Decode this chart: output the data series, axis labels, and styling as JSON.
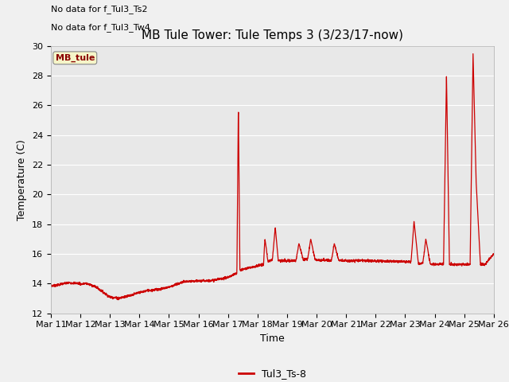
{
  "title": "MB Tule Tower: Tule Temps 3 (3/23/17-now)",
  "xlabel": "Time",
  "ylabel": "Temperature (C)",
  "ylim": [
    12,
    30
  ],
  "yticks": [
    12,
    14,
    16,
    18,
    20,
    22,
    24,
    26,
    28,
    30
  ],
  "xtick_labels": [
    "Mar 11",
    "Mar 12",
    "Mar 13",
    "Mar 14",
    "Mar 15",
    "Mar 16",
    "Mar 17",
    "Mar 18",
    "Mar 19",
    "Mar 20",
    "Mar 21",
    "Mar 22",
    "Mar 23",
    "Mar 24",
    "Mar 25",
    "Mar 26"
  ],
  "no_data_text1": "No data for f_Tul3_Ts2",
  "no_data_text2": "No data for f_Tul3_Tw4",
  "legend_label": "Tul3_Ts-8",
  "legend_box_label": "MB_tule",
  "line_color": "#cc0000",
  "background_color": "#f0f0f0",
  "plot_bg_color": "#e8e8e8",
  "grid_color": "#ffffff",
  "title_fontsize": 11,
  "axis_fontsize": 9,
  "tick_fontsize": 8
}
